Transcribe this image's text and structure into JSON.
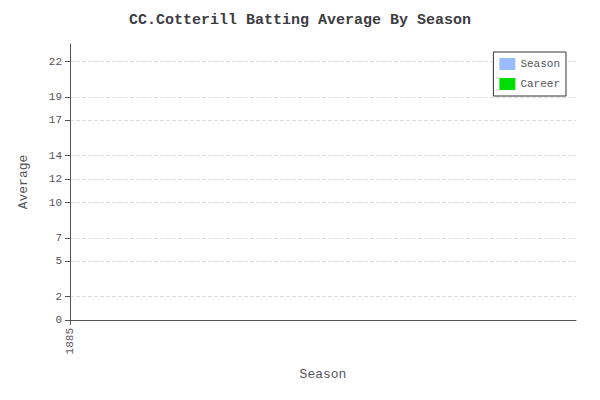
{
  "chart_data": {
    "type": "bar",
    "title": "CC.Cotterill Batting Average By Season",
    "xlabel": "Season",
    "ylabel": "Average",
    "x": [],
    "series": [
      {
        "name": "Season",
        "color": "#99bbff",
        "values": []
      },
      {
        "name": "Career",
        "color": "#00dd00",
        "values": []
      }
    ],
    "xlim": [
      1885,
      1887
    ],
    "xticks": [
      1885
    ],
    "ylim": [
      0,
      23.5
    ],
    "yticks": [
      0,
      2,
      5,
      7,
      10,
      12,
      14,
      17,
      19,
      22
    ],
    "grid": true,
    "legend": "upper right"
  }
}
